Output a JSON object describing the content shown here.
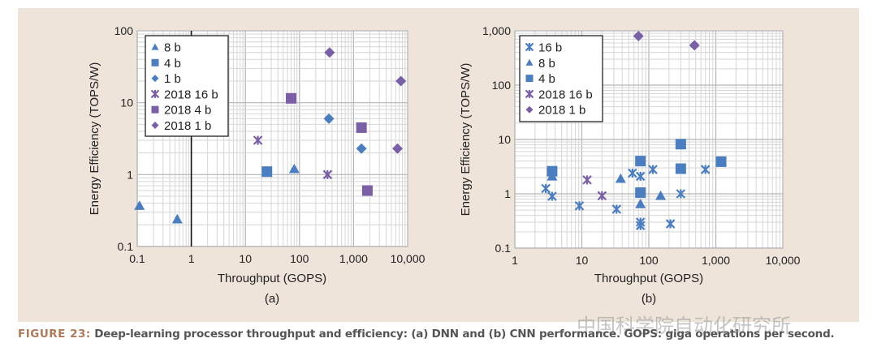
{
  "colors": {
    "blue": "#4a7ec0",
    "purple": "#7a5fa6",
    "panel": "#efe4da"
  },
  "chart_data": [
    {
      "type": "scatter",
      "subtitle": "(a)",
      "xlabel": "Throughput (GOPS)",
      "ylabel": "Energy Efficiency (TOPS/W)",
      "xscale": "log",
      "yscale": "log",
      "xlim": [
        0.1,
        10000
      ],
      "ylim": [
        0.1,
        100
      ],
      "xticks": [
        "0.1",
        "1",
        "10",
        "100",
        "1,000",
        "10,000"
      ],
      "yticks": [
        "0.1",
        "1",
        "10",
        "100"
      ],
      "grid": true,
      "legend_position": "top-left",
      "highlight_vline_x": 1,
      "series": [
        {
          "name": "8 b",
          "marker": "triangle",
          "color": "blue",
          "points": [
            [
              0.11,
              0.37
            ],
            [
              0.55,
              0.24
            ],
            [
              80,
              1.2
            ]
          ]
        },
        {
          "name": "4 b",
          "marker": "square",
          "color": "blue",
          "points": [
            [
              25,
              1.1
            ]
          ]
        },
        {
          "name": "1 b",
          "marker": "diamond",
          "color": "blue",
          "points": [
            [
              350,
              6.0
            ],
            [
              1400,
              2.3
            ]
          ]
        },
        {
          "name": "2018 16 b",
          "marker": "asterisk",
          "color": "purple",
          "points": [
            [
              17,
              3.0
            ],
            [
              330,
              1.0
            ]
          ]
        },
        {
          "name": "2018 4 b",
          "marker": "square",
          "color": "purple",
          "points": [
            [
              70,
              11.5
            ],
            [
              1400,
              4.5
            ],
            [
              1800,
              0.6
            ]
          ]
        },
        {
          "name": "2018 1 b",
          "marker": "diamond",
          "color": "purple",
          "points": [
            [
              360,
              50
            ],
            [
              7500,
              20
            ],
            [
              6500,
              2.3
            ]
          ]
        }
      ]
    },
    {
      "type": "scatter",
      "subtitle": "(b)",
      "xlabel": "Throughput (GOPS)",
      "ylabel": "Energy Efficiency (TOPS/W)",
      "xscale": "log",
      "yscale": "log",
      "xlim": [
        1,
        10000
      ],
      "ylim": [
        0.1,
        1000
      ],
      "xticks": [
        "1",
        "10",
        "100",
        "1,000",
        "10,000"
      ],
      "yticks": [
        "0.1",
        "1",
        "10",
        "100",
        "1,000"
      ],
      "grid": true,
      "legend_position": "top-left",
      "series": [
        {
          "name": "16 b",
          "marker": "asterisk",
          "color": "blue",
          "points": [
            [
              2.9,
              1.25
            ],
            [
              3.6,
              0.9
            ],
            [
              9.2,
              0.6
            ],
            [
              33,
              0.52
            ],
            [
              57,
              2.4
            ],
            [
              75,
              2.1
            ],
            [
              115,
              2.8
            ],
            [
              210,
              0.28
            ],
            [
              300,
              1.0
            ],
            [
              700,
              2.8
            ],
            [
              75,
              0.3
            ],
            [
              75,
              0.26
            ]
          ]
        },
        {
          "name": "8 b",
          "marker": "triangle",
          "color": "blue",
          "points": [
            [
              3.6,
              2.1
            ],
            [
              38,
              1.9
            ],
            [
              75,
              0.65
            ],
            [
              150,
              0.92
            ]
          ]
        },
        {
          "name": "4 b",
          "marker": "square",
          "color": "blue",
          "points": [
            [
              3.6,
              2.6
            ],
            [
              75,
              4.0
            ],
            [
              75,
              1.05
            ],
            [
              300,
              8.2
            ],
            [
              300,
              2.9
            ],
            [
              1200,
              3.9
            ]
          ]
        },
        {
          "name": "2018 16 b",
          "marker": "asterisk",
          "color": "purple",
          "points": [
            [
              12,
              1.8
            ],
            [
              20,
              0.92
            ]
          ]
        },
        {
          "name": "2018 1 b",
          "marker": "diamond",
          "color": "purple",
          "points": [
            [
              70,
              800
            ],
            [
              480,
              540
            ]
          ]
        }
      ]
    }
  ],
  "caption": {
    "figure_label": "FIGURE 23:",
    "text": " Deep-learning processor throughput and efficiency: (a) DNN and (b) CNN performance. GOPS: giga operations per second."
  },
  "watermark": "中国科学院自动化研究所"
}
